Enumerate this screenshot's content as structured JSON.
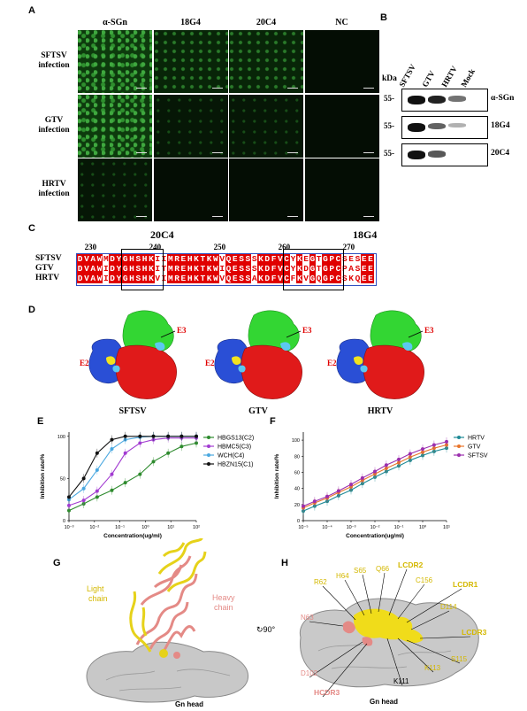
{
  "panels": {
    "A": "A",
    "B": "B",
    "C": "C",
    "D": "D",
    "E": "E",
    "F": "F",
    "G": "G",
    "H": "H"
  },
  "panelA": {
    "col_headers": [
      "α-SGn",
      "18G4",
      "20C4",
      "NC"
    ],
    "row_labels": [
      [
        "SFTSV",
        "infection"
      ],
      [
        "GTV",
        "infection"
      ],
      [
        "HRTV",
        "infection"
      ]
    ],
    "intensity": [
      [
        "green",
        "mid",
        "mid",
        "dark"
      ],
      [
        "green",
        "dim",
        "dim",
        "dark"
      ],
      [
        "dim",
        "dark",
        "dark",
        "dark"
      ]
    ]
  },
  "panelB": {
    "lanes": [
      "SFTSV",
      "GTV",
      "HRTV",
      "Mock"
    ],
    "kda_label": "kDa",
    "marker": "55",
    "blots": [
      {
        "name": "α-SGn",
        "bands": [
          1.0,
          0.9,
          0.45,
          0
        ]
      },
      {
        "name": "18G4",
        "bands": [
          1.0,
          0.55,
          0.1,
          0
        ]
      },
      {
        "name": "20C4",
        "bands": [
          1.0,
          0.6,
          0,
          0
        ]
      }
    ]
  },
  "panelC": {
    "epitope_left": "20C4",
    "epitope_right": "18G4",
    "positions": [
      "230",
      "240",
      "250",
      "260",
      "270"
    ],
    "sequences": [
      {
        "name": "SFTSV",
        "seq": "DVAWMDYGHSHKIIMREHKTKWVQESSSKDFVCYKEGTGPCSESEE"
      },
      {
        "name": "GTV",
        "seq": "DVAWIDYGHSHKITMREHKTKWIQESSSKDFVCYKDGTGPCPASEE"
      },
      {
        "name": "HRTV",
        "seq": "DVAWIDYGHSHKVIMREHKTKWVQESSAKDFVCFKVGQGPCSKQEE"
      }
    ]
  },
  "panelD": {
    "structures": [
      "SFTSV",
      "GTV",
      "HRTV"
    ],
    "e3": "E3",
    "e2": "E2"
  },
  "panelG": {
    "light_chain": [
      "Light",
      "chain"
    ],
    "heavy_chain": [
      "Heavy",
      "chain"
    ],
    "gn_head": "Gn head",
    "rotation": "90°"
  },
  "panelH": {
    "gn_head": "Gn head",
    "residues_yellow": [
      "H64",
      "S65",
      "Q66",
      "R62",
      "C156",
      "D114",
      "K113",
      "S115"
    ],
    "residues_pink": [
      "N63",
      "D102"
    ],
    "residue_black": [
      "K111"
    ],
    "cdr_yellow": [
      "LCDR2",
      "LCDR1",
      "LCDR3"
    ],
    "cdr_pink": [
      "HCDR3"
    ]
  },
  "chart_data": [
    {
      "type": "line",
      "panel": "E",
      "xlabel": "Concentration(ug/ml)",
      "ylabel": "Inhibition rate/%",
      "x_scale": "log",
      "x_ticks": [
        "10⁻³",
        "10⁻²",
        "10⁻¹",
        "10⁰",
        "10¹",
        "10²"
      ],
      "y_ticks": [
        "0",
        "50",
        "100"
      ],
      "ylim": [
        0,
        105
      ],
      "x": [
        0.003,
        0.01,
        0.03,
        0.1,
        0.3,
        1,
        3,
        10,
        30,
        100
      ],
      "series": [
        {
          "name": "HBGS13(C2)",
          "color": "#2e8b2e",
          "values": [
            12,
            20,
            28,
            36,
            45,
            55,
            70,
            80,
            88,
            92
          ]
        },
        {
          "name": "HBMC5(C3)",
          "color": "#a23bd1",
          "values": [
            18,
            24,
            35,
            55,
            80,
            92,
            96,
            98,
            98,
            98
          ]
        },
        {
          "name": "WCH(C4)",
          "color": "#4aa8e0",
          "values": [
            25,
            38,
            60,
            85,
            96,
            99,
            100,
            100,
            100,
            100
          ]
        },
        {
          "name": "HBZN15(C1)",
          "color": "#111111",
          "values": [
            28,
            50,
            80,
            96,
            100,
            100,
            100,
            100,
            100,
            100
          ]
        }
      ]
    },
    {
      "type": "line",
      "panel": "F",
      "xlabel": "Concentration(ug/ml)",
      "ylabel": "Inhibition rate/%",
      "x_scale": "log",
      "x_ticks": [
        "10⁻⁵",
        "10⁻⁴",
        "10⁻³",
        "10⁻²",
        "10⁻¹",
        "10⁰",
        "10¹"
      ],
      "y_ticks": [
        "0",
        "20",
        "40",
        "60",
        "80",
        "100"
      ],
      "ylim": [
        0,
        110
      ],
      "x": [
        1e-05,
        3e-05,
        0.0001,
        0.0003,
        0.001,
        0.003,
        0.01,
        0.03,
        0.1,
        0.3,
        1,
        3,
        10
      ],
      "series": [
        {
          "name": "HRTV",
          "color": "#1f8a96",
          "values": [
            12,
            18,
            24,
            31,
            38,
            46,
            54,
            61,
            68,
            75,
            81,
            86,
            90
          ]
        },
        {
          "name": "GTV",
          "color": "#e8752a",
          "values": [
            16,
            22,
            28,
            35,
            42,
            50,
            58,
            65,
            72,
            79,
            85,
            90,
            94
          ]
        },
        {
          "name": "SFTSV",
          "color": "#9b2fae",
          "values": [
            18,
            24,
            30,
            37,
            45,
            53,
            61,
            69,
            76,
            83,
            89,
            94,
            98
          ]
        }
      ]
    }
  ]
}
